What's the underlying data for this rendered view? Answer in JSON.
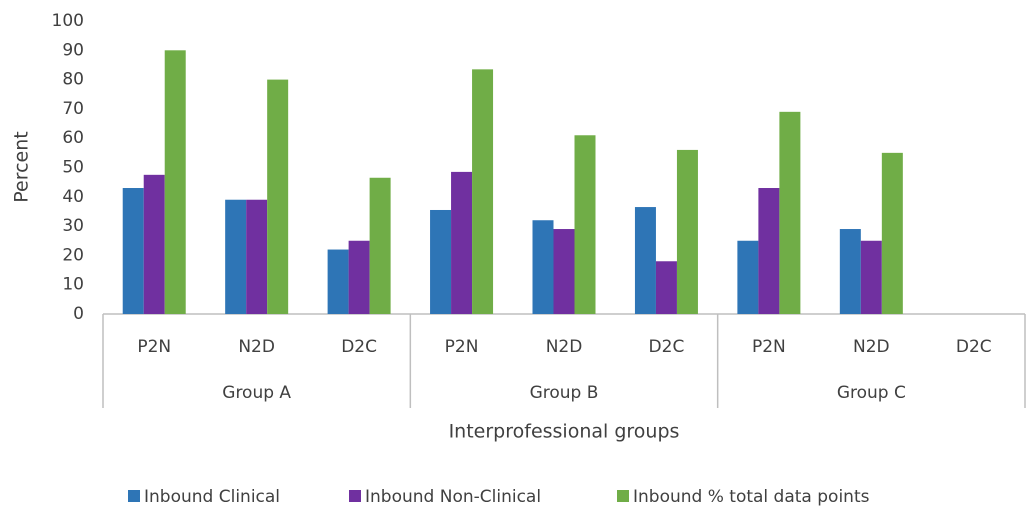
{
  "chart_data": {
    "type": "bar",
    "y_label": "Percent",
    "x_label": "Interprofessional groups",
    "categories": [
      "P2N",
      "N2D",
      "D2C",
      "P2N",
      "N2D",
      "D2C",
      "P2N",
      "N2D",
      "D2C"
    ],
    "groups": [
      "Group A",
      "Group B",
      "Group C"
    ],
    "series": [
      {
        "name": "Inbound Clinical",
        "color": "#2e75b6",
        "values": [
          43,
          39,
          22,
          35.5,
          32,
          36.5,
          25,
          29,
          null
        ]
      },
      {
        "name": "Inbound Non-Clinical",
        "color": "#7030a0",
        "values": [
          47.5,
          39,
          25,
          48.5,
          29,
          18,
          43,
          25,
          null
        ]
      },
      {
        "name": "Inbound % total data points",
        "color": "#70ad47",
        "values": [
          90,
          80,
          46.5,
          83.5,
          61,
          56,
          69,
          55,
          null
        ]
      }
    ],
    "ylim": [
      0,
      100
    ],
    "yticks": [
      0,
      10,
      20,
      30,
      40,
      50,
      60,
      70,
      80,
      90,
      100
    ],
    "grid": false,
    "legend": "bottom"
  }
}
